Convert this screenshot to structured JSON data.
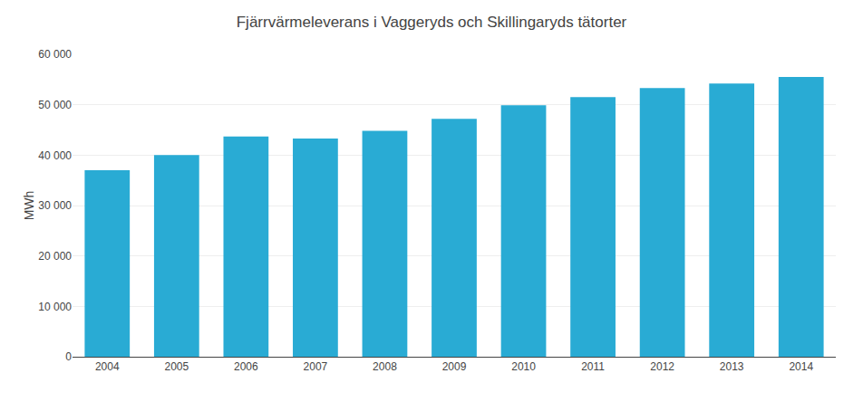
{
  "chart_data": {
    "type": "bar",
    "title": "Fjärrvärmeleverans i Vaggeryds och Skillingaryds tätorter",
    "categories": [
      "2004",
      "2005",
      "2006",
      "2007",
      "2008",
      "2009",
      "2010",
      "2011",
      "2012",
      "2013",
      "2014"
    ],
    "values": [
      37000,
      40000,
      43700,
      43300,
      44800,
      47200,
      49900,
      51500,
      53300,
      54200,
      55500
    ],
    "color": "#29ABD4",
    "ylabel": "MWh",
    "ylim": [
      0,
      60000
    ],
    "yticks": [
      0,
      {
        "value": 10000,
        "label": "10 000"
      },
      {
        "value": 20000,
        "label": "20 000"
      },
      {
        "value": 30000,
        "label": "30 000"
      },
      {
        "value": 40000,
        "label": "40 000"
      },
      {
        "value": 50000,
        "label": "50 000"
      },
      {
        "value": 60000,
        "label": "60 000"
      }
    ],
    "grid": true
  }
}
